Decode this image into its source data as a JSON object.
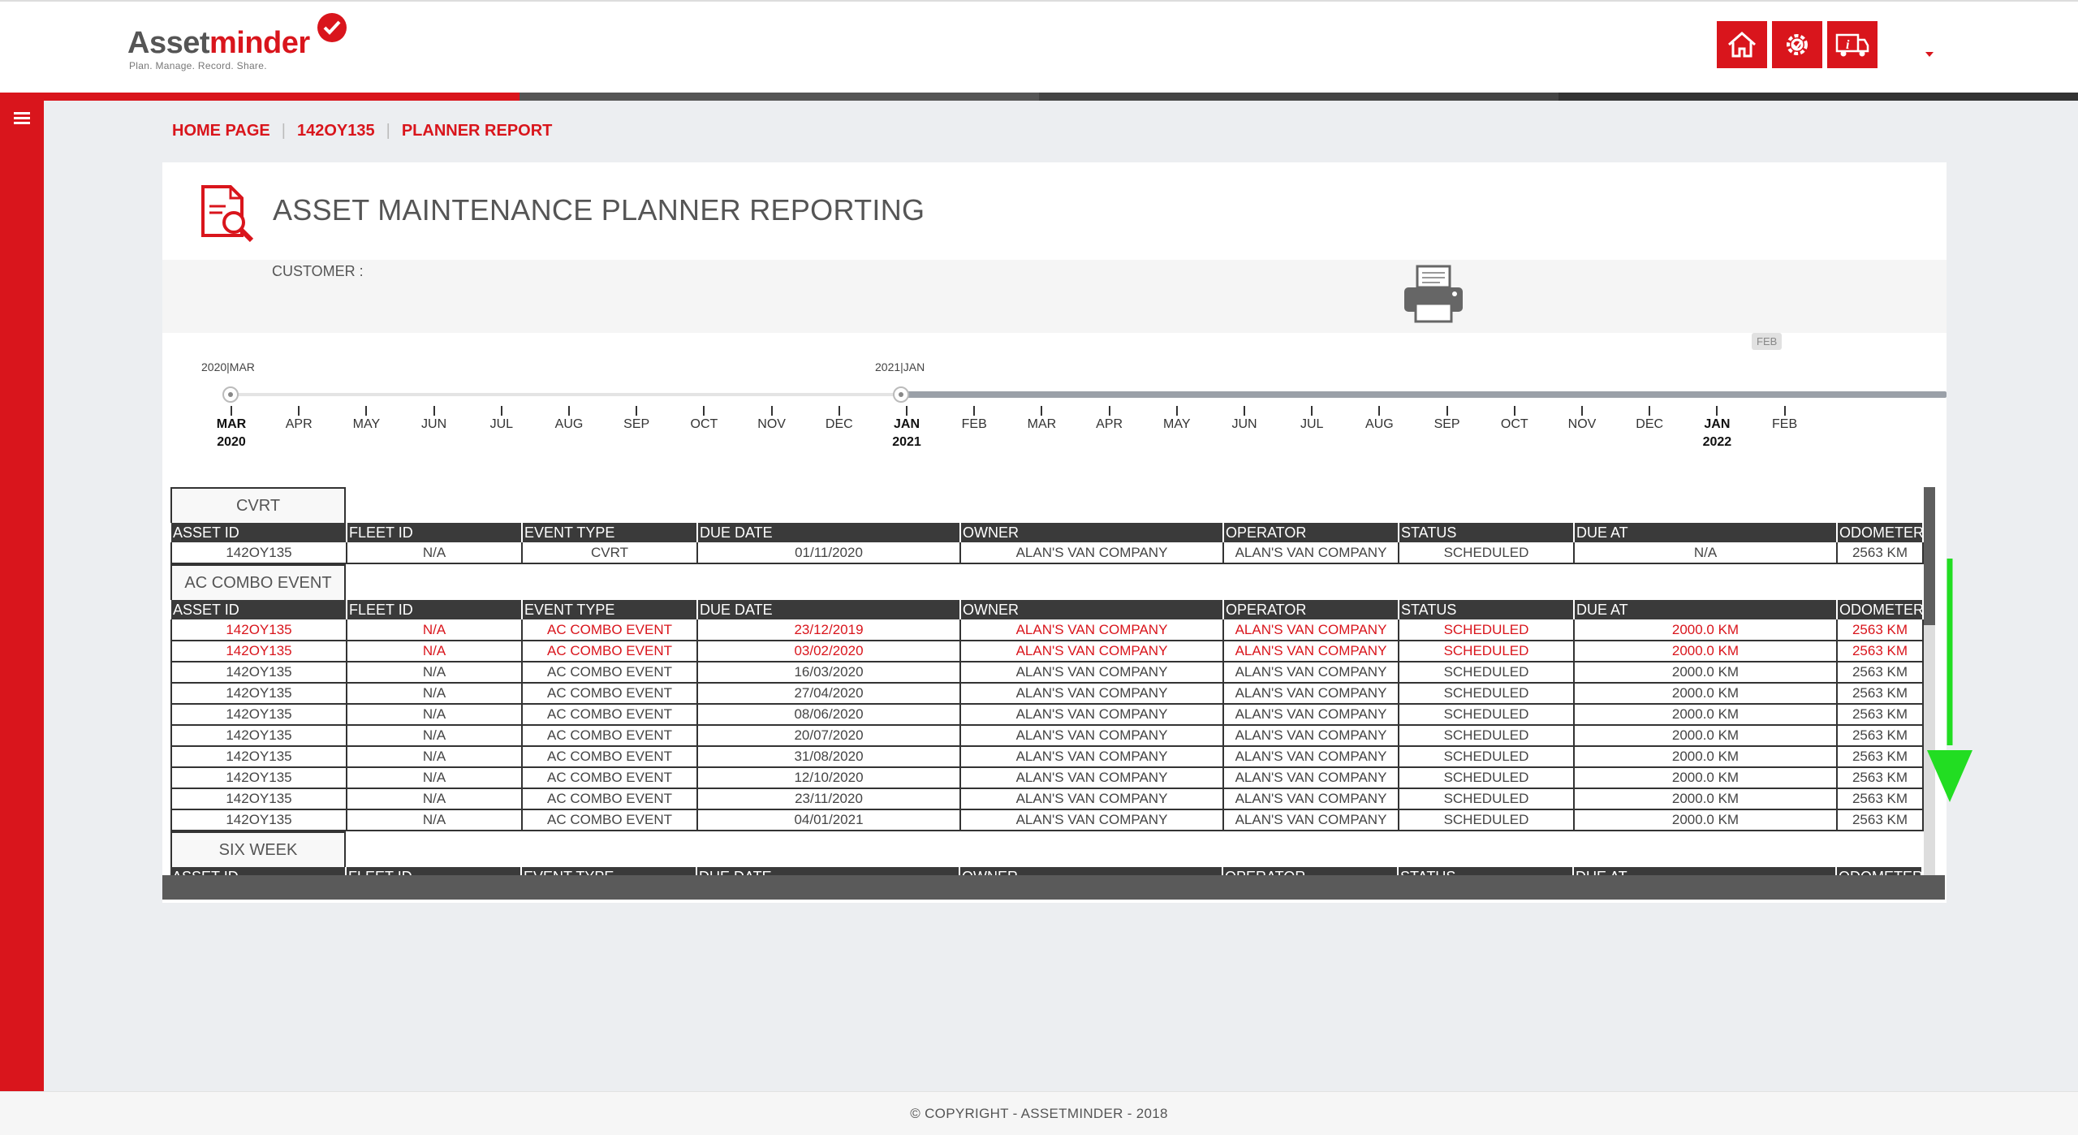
{
  "header": {
    "logo": {
      "part1": "Asset",
      "part2": "minder",
      "tagline": "Plan. Manage. Record. Share."
    },
    "icons": [
      "home-icon",
      "gear-service-icon",
      "truck-info-icon"
    ]
  },
  "breadcrumb": {
    "home": "HOME PAGE",
    "asset": "142OY135",
    "current": "PLANNER REPORT",
    "sep": "|"
  },
  "panel": {
    "title": "ASSET MAINTENANCE PLANNER REPORTING",
    "customer_label": "CUSTOMER :"
  },
  "timeline": {
    "start_label": "2020|MAR",
    "handle_label": "2021|JAN",
    "end_badge": "FEB",
    "months": [
      "MAR",
      "APR",
      "MAY",
      "JUN",
      "JUL",
      "AUG",
      "SEP",
      "OCT",
      "NOV",
      "DEC",
      "JAN",
      "FEB",
      "MAR",
      "APR",
      "MAY",
      "JUN",
      "JUL",
      "AUG",
      "SEP",
      "OCT",
      "NOV",
      "DEC",
      "JAN",
      "FEB"
    ],
    "years": {
      "0": "2020",
      "10": "2021",
      "22": "2022"
    }
  },
  "columns": [
    "ASSET ID",
    "FLEET ID",
    "EVENT TYPE",
    "DUE DATE",
    "OWNER",
    "OPERATOR",
    "STATUS",
    "DUE AT",
    "ODOMETER"
  ],
  "groups": [
    {
      "name": "CVRT",
      "rows": [
        {
          "overdue": false,
          "cells": [
            "142OY135",
            "N/A",
            "CVRT",
            "01/11/2020",
            "ALAN'S VAN COMPANY",
            "ALAN'S VAN COMPANY",
            "SCHEDULED",
            "N/A",
            "2563 KM"
          ]
        }
      ]
    },
    {
      "name": "AC COMBO EVENT",
      "rows": [
        {
          "overdue": true,
          "cells": [
            "142OY135",
            "N/A",
            "AC COMBO EVENT",
            "23/12/2019",
            "ALAN'S VAN COMPANY",
            "ALAN'S VAN COMPANY",
            "SCHEDULED",
            "2000.0 KM",
            "2563 KM"
          ]
        },
        {
          "overdue": true,
          "cells": [
            "142OY135",
            "N/A",
            "AC COMBO EVENT",
            "03/02/2020",
            "ALAN'S VAN COMPANY",
            "ALAN'S VAN COMPANY",
            "SCHEDULED",
            "2000.0 KM",
            "2563 KM"
          ]
        },
        {
          "overdue": false,
          "cells": [
            "142OY135",
            "N/A",
            "AC COMBO EVENT",
            "16/03/2020",
            "ALAN'S VAN COMPANY",
            "ALAN'S VAN COMPANY",
            "SCHEDULED",
            "2000.0 KM",
            "2563 KM"
          ]
        },
        {
          "overdue": false,
          "cells": [
            "142OY135",
            "N/A",
            "AC COMBO EVENT",
            "27/04/2020",
            "ALAN'S VAN COMPANY",
            "ALAN'S VAN COMPANY",
            "SCHEDULED",
            "2000.0 KM",
            "2563 KM"
          ]
        },
        {
          "overdue": false,
          "cells": [
            "142OY135",
            "N/A",
            "AC COMBO EVENT",
            "08/06/2020",
            "ALAN'S VAN COMPANY",
            "ALAN'S VAN COMPANY",
            "SCHEDULED",
            "2000.0 KM",
            "2563 KM"
          ]
        },
        {
          "overdue": false,
          "cells": [
            "142OY135",
            "N/A",
            "AC COMBO EVENT",
            "20/07/2020",
            "ALAN'S VAN COMPANY",
            "ALAN'S VAN COMPANY",
            "SCHEDULED",
            "2000.0 KM",
            "2563 KM"
          ]
        },
        {
          "overdue": false,
          "cells": [
            "142OY135",
            "N/A",
            "AC COMBO EVENT",
            "31/08/2020",
            "ALAN'S VAN COMPANY",
            "ALAN'S VAN COMPANY",
            "SCHEDULED",
            "2000.0 KM",
            "2563 KM"
          ]
        },
        {
          "overdue": false,
          "cells": [
            "142OY135",
            "N/A",
            "AC COMBO EVENT",
            "12/10/2020",
            "ALAN'S VAN COMPANY",
            "ALAN'S VAN COMPANY",
            "SCHEDULED",
            "2000.0 KM",
            "2563 KM"
          ]
        },
        {
          "overdue": false,
          "cells": [
            "142OY135",
            "N/A",
            "AC COMBO EVENT",
            "23/11/2020",
            "ALAN'S VAN COMPANY",
            "ALAN'S VAN COMPANY",
            "SCHEDULED",
            "2000.0 KM",
            "2563 KM"
          ]
        },
        {
          "overdue": false,
          "cells": [
            "142OY135",
            "N/A",
            "AC COMBO EVENT",
            "04/01/2021",
            "ALAN'S VAN COMPANY",
            "ALAN'S VAN COMPANY",
            "SCHEDULED",
            "2000.0 KM",
            "2563 KM"
          ]
        }
      ]
    },
    {
      "name": "SIX WEEK",
      "rows": []
    }
  ],
  "footer": "© COPYRIGHT - ASSETMINDER - 2018",
  "colors": {
    "brand": "#d9151c",
    "header_dark": "#3a3a3a",
    "arrow": "#22dd22"
  }
}
